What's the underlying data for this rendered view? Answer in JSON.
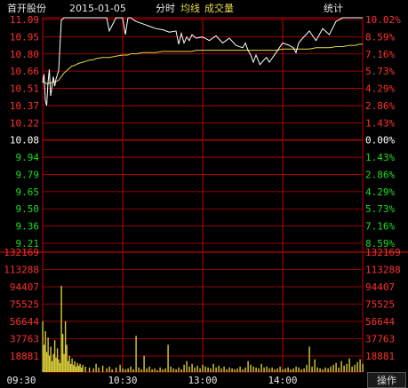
{
  "header": {
    "stock_name": "首开股份",
    "date": "2015-01-05",
    "mode": "分时",
    "avg_legend": "均线",
    "vol_legend": "成交量",
    "stats_button": "统计"
  },
  "footer": {
    "time_labels": [
      "09:30",
      "10:30",
      "13:00",
      "14:00"
    ],
    "menu_button": "操作"
  },
  "colors": {
    "background": "#000000",
    "grid": "#c00000",
    "price_line": "#ffffff",
    "avg_line": "#e6d84a",
    "volume_bar": "#d8cc3a",
    "up_text": "#ff3030",
    "down_text": "#20dd20",
    "flat_text": "#ffffff"
  },
  "chart_data": [
    {
      "type": "line",
      "title": "",
      "prev_close": 10.08,
      "ylim": [
        9.14,
        11.09
      ],
      "price_ticks": [
        "11.09",
        "10.95",
        "10.80",
        "10.66",
        "10.51",
        "10.37",
        "10.22",
        "10.08",
        "9.94",
        "9.79",
        "9.65",
        "9.50",
        "9.36",
        "9.21"
      ],
      "pct_ticks": [
        "10.02%",
        "8.59%",
        "7.16%",
        "5.73%",
        "4.29%",
        "2.86%",
        "1.43%",
        "0.00%",
        "1.43%",
        "2.86%",
        "4.29%",
        "5.73%",
        "7.16%",
        "8.59%"
      ],
      "x": [
        0,
        1,
        2,
        3,
        4,
        5,
        6,
        7,
        8,
        9,
        10,
        12,
        14,
        16,
        18,
        20,
        22,
        23,
        25,
        27,
        30,
        33,
        36,
        38,
        40,
        45,
        48,
        50,
        55,
        60,
        62,
        64,
        66,
        70,
        75,
        80,
        85,
        90,
        95,
        100,
        102,
        104,
        106,
        108,
        110,
        112,
        115,
        120,
        125,
        130,
        135,
        140,
        145,
        150,
        152,
        154,
        156,
        158,
        160,
        163,
        166,
        168,
        170,
        175,
        180,
        185,
        188,
        190,
        192,
        195,
        200,
        205,
        210,
        215,
        220,
        225,
        230,
        232,
        235,
        237,
        240
      ],
      "series": [
        {
          "values": [
            10.55,
            10.62,
            10.4,
            10.36,
            10.55,
            10.66,
            10.44,
            10.52,
            10.6,
            10.52,
            10.58,
            10.65,
            11.07,
            11.09,
            11.09,
            11.09,
            11.09,
            11.09,
            11.09,
            11.09,
            11.09,
            11.09,
            11.09,
            11.09,
            11.09,
            11.09,
            11.09,
            10.98,
            11.09,
            11.09,
            10.95,
            11.09,
            11.09,
            11.06,
            11.04,
            11.02,
            11.0,
            10.99,
            10.97,
            10.98,
            10.87,
            10.96,
            10.88,
            10.93,
            10.9,
            10.95,
            10.92,
            10.93,
            10.9,
            10.94,
            10.88,
            10.92,
            10.86,
            10.84,
            10.88,
            10.82,
            10.78,
            10.72,
            10.78,
            10.7,
            10.74,
            10.76,
            10.72,
            10.8,
            10.88,
            10.86,
            10.84,
            10.8,
            10.88,
            10.92,
            10.98,
            10.9,
            11.0,
            10.95,
            11.06,
            11.09,
            11.09,
            11.09,
            11.09,
            11.09,
            11.09
          ]
        },
        {
          "values": [
            10.55,
            10.56,
            10.55,
            10.54,
            10.54,
            10.55,
            10.55,
            10.55,
            10.56,
            10.56,
            10.56,
            10.57,
            10.6,
            10.63,
            10.65,
            10.67,
            10.69,
            10.69,
            10.7,
            10.71,
            10.72,
            10.73,
            10.74,
            10.74,
            10.75,
            10.76,
            10.76,
            10.76,
            10.77,
            10.78,
            10.78,
            10.78,
            10.79,
            10.79,
            10.8,
            10.8,
            10.8,
            10.81,
            10.81,
            10.81,
            10.81,
            10.81,
            10.81,
            10.81,
            10.81,
            10.81,
            10.82,
            10.82,
            10.82,
            10.82,
            10.82,
            10.82,
            10.82,
            10.82,
            10.82,
            10.82,
            10.82,
            10.82,
            10.82,
            10.82,
            10.82,
            10.82,
            10.82,
            10.82,
            10.83,
            10.83,
            10.83,
            10.83,
            10.83,
            10.83,
            10.83,
            10.84,
            10.84,
            10.84,
            10.85,
            10.85,
            10.86,
            10.86,
            10.86,
            10.87,
            10.87
          ]
        }
      ]
    },
    {
      "type": "bar",
      "title": "",
      "ylim": [
        0,
        132169
      ],
      "volume_ticks": [
        "132169",
        "113288",
        "94407",
        "75525",
        "56644",
        "37763",
        "18881"
      ],
      "x": [
        0,
        1,
        2,
        3,
        4,
        5,
        6,
        7,
        8,
        9,
        10,
        11,
        12,
        13,
        14,
        15,
        16,
        17,
        18,
        19,
        20,
        21,
        22,
        23,
        24,
        25,
        26,
        27,
        28,
        29,
        30,
        32,
        35,
        38,
        40,
        42,
        45,
        48,
        50,
        52,
        55,
        58,
        60,
        62,
        64,
        66,
        68,
        70,
        72,
        74,
        76,
        78,
        80,
        82,
        84,
        86,
        88,
        90,
        92,
        94,
        96,
        98,
        100,
        102,
        104,
        106,
        108,
        110,
        112,
        114,
        116,
        118,
        120,
        122,
        124,
        126,
        128,
        130,
        132,
        134,
        136,
        138,
        140,
        142,
        144,
        146,
        148,
        150,
        152,
        154,
        156,
        158,
        160,
        162,
        164,
        166,
        168,
        170,
        172,
        174,
        176,
        178,
        180,
        182,
        184,
        186,
        188,
        190,
        192,
        194,
        196,
        198,
        200,
        202,
        204,
        206,
        208,
        210,
        212,
        214,
        216,
        218,
        220,
        222,
        224,
        226,
        228,
        230,
        232,
        234,
        236,
        238,
        240
      ],
      "series": [
        {
          "values": [
            56000,
            30000,
            45000,
            22000,
            38000,
            18000,
            28000,
            12000,
            20000,
            35000,
            16000,
            26000,
            14000,
            10000,
            95000,
            42000,
            20000,
            56000,
            30000,
            12000,
            18000,
            9000,
            15000,
            8000,
            12000,
            6000,
            10000,
            7000,
            9000,
            5000,
            8000,
            6000,
            5000,
            4000,
            9000,
            5000,
            7000,
            4000,
            6000,
            3000,
            5000,
            8000,
            4000,
            3000,
            4000,
            6000,
            3000,
            40000,
            5000,
            3000,
            18000,
            4000,
            6000,
            3000,
            4000,
            2000,
            5000,
            3000,
            4000,
            30000,
            6000,
            4000,
            3000,
            5000,
            3000,
            8000,
            12000,
            6000,
            9000,
            5000,
            7000,
            4000,
            8000,
            6000,
            5000,
            4000,
            9000,
            5000,
            7000,
            4000,
            6000,
            3000,
            5000,
            4000,
            3000,
            4000,
            6000,
            3000,
            5000,
            12000,
            8000,
            6000,
            5000,
            4000,
            9000,
            5000,
            6000,
            4000,
            5000,
            3000,
            4000,
            6000,
            3000,
            4000,
            5000,
            3000,
            4000,
            6000,
            5000,
            3000,
            4000,
            8000,
            28000,
            6000,
            14000,
            5000,
            4000,
            3000,
            5000,
            4000,
            6000,
            8000,
            10000,
            5000,
            12000,
            7000,
            9000,
            15000,
            6000,
            8000,
            11000,
            14000,
            9000
          ]
        }
      ]
    }
  ]
}
